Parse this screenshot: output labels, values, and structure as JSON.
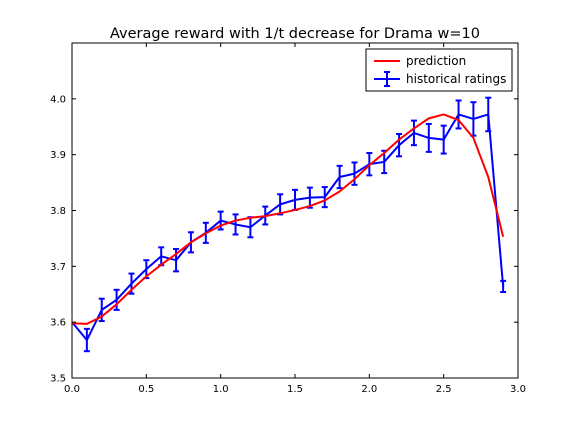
{
  "chart_data": {
    "type": "line",
    "title": "Average reward with 1/t decrease for Drama w=10",
    "xlabel": "",
    "ylabel": "",
    "xlim": [
      0.0,
      3.0
    ],
    "ylim": [
      3.5,
      4.1
    ],
    "xticks": [
      "0.0",
      "0.5",
      "1.0",
      "1.5",
      "2.0",
      "2.5",
      "3.0"
    ],
    "yticks": [
      "3.5",
      "3.6",
      "3.7",
      "3.8",
      "3.9",
      "4.0"
    ],
    "grid": false,
    "legend": {
      "position": "top-right"
    },
    "series": [
      {
        "name": "prediction",
        "color": "#ff0000",
        "x": [
          0.0,
          0.1,
          0.2,
          0.3,
          0.4,
          0.5,
          0.6,
          0.7,
          0.8,
          0.9,
          1.0,
          1.1,
          1.2,
          1.3,
          1.4,
          1.5,
          1.6,
          1.7,
          1.8,
          1.9,
          2.0,
          2.1,
          2.2,
          2.3,
          2.4,
          2.5,
          2.6,
          2.7,
          2.8,
          2.9
        ],
        "y": [
          3.598,
          3.597,
          3.61,
          3.632,
          3.658,
          3.682,
          3.703,
          3.722,
          3.743,
          3.759,
          3.773,
          3.782,
          3.787,
          3.79,
          3.795,
          3.801,
          3.808,
          3.818,
          3.834,
          3.856,
          3.881,
          3.903,
          3.927,
          3.947,
          3.965,
          3.972,
          3.962,
          3.93,
          3.86,
          3.753
        ]
      },
      {
        "name": "historical ratings",
        "color": "#0000ff",
        "x": [
          0.0,
          0.1,
          0.2,
          0.3,
          0.4,
          0.5,
          0.6,
          0.7,
          0.8,
          0.9,
          1.0,
          1.1,
          1.2,
          1.3,
          1.4,
          1.5,
          1.6,
          1.7,
          1.8,
          1.9,
          2.0,
          2.1,
          2.2,
          2.3,
          2.4,
          2.5,
          2.6,
          2.7,
          2.8,
          2.9
        ],
        "y": [
          3.6,
          3.568,
          3.622,
          3.64,
          3.669,
          3.695,
          3.718,
          3.711,
          3.743,
          3.76,
          3.782,
          3.775,
          3.77,
          3.791,
          3.811,
          3.819,
          3.823,
          3.824,
          3.86,
          3.866,
          3.883,
          3.887,
          3.917,
          3.939,
          3.93,
          3.927,
          3.972,
          3.964,
          3.972,
          3.664
        ],
        "yerr": [
          0.0,
          0.02,
          0.02,
          0.018,
          0.018,
          0.016,
          0.016,
          0.02,
          0.018,
          0.018,
          0.016,
          0.018,
          0.018,
          0.016,
          0.018,
          0.018,
          0.018,
          0.018,
          0.02,
          0.02,
          0.02,
          0.02,
          0.02,
          0.022,
          0.025,
          0.025,
          0.025,
          0.03,
          0.03,
          0.01
        ]
      }
    ]
  }
}
